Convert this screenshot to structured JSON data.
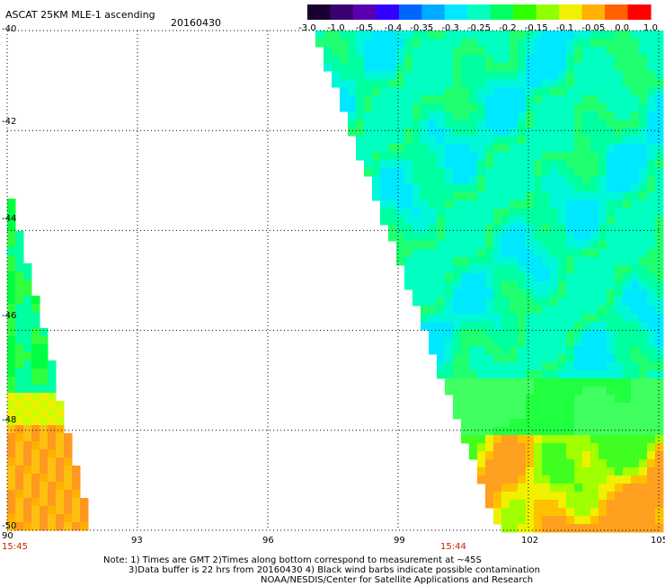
{
  "header": {
    "title": "ASCAT 25KM MLE-1 ascending",
    "date": "20160430"
  },
  "colorbar": {
    "labels": [
      "-3.0",
      "-1.0",
      "-0.5",
      "-0.4",
      "-0.35",
      "-0.3",
      "-0.25",
      "-0.2",
      "-0.15",
      "-0.1",
      "-0.05",
      "0.0",
      "1.0"
    ],
    "colors": [
      "#1a0030",
      "#3a0070",
      "#5a00b0",
      "#3300ff",
      "#0066ff",
      "#00aaff",
      "#00e8ff",
      "#00ffc0",
      "#00ff60",
      "#30ff00",
      "#90ff00",
      "#f0f000",
      "#ffb000",
      "#ff6000",
      "#ff0000"
    ]
  },
  "axes": {
    "x_labels": [
      "90",
      "93",
      "96",
      "99",
      "102",
      "105"
    ],
    "y_labels": [
      "-40",
      "-42",
      "-44",
      "-46",
      "-48",
      "-50"
    ],
    "time_labels": [
      "15:45",
      "15:44"
    ]
  },
  "notes": {
    "line1": "Note: 1) Times are GMT 2)Times along bottom correspond to measurement at ~45S",
    "line2": "3)Data buffer is 22 hrs from 20160430 4) Black wind barbs indicate possible contamination",
    "line3": "NOAA/NESDIS/Center for Satellite Applications and Research"
  }
}
